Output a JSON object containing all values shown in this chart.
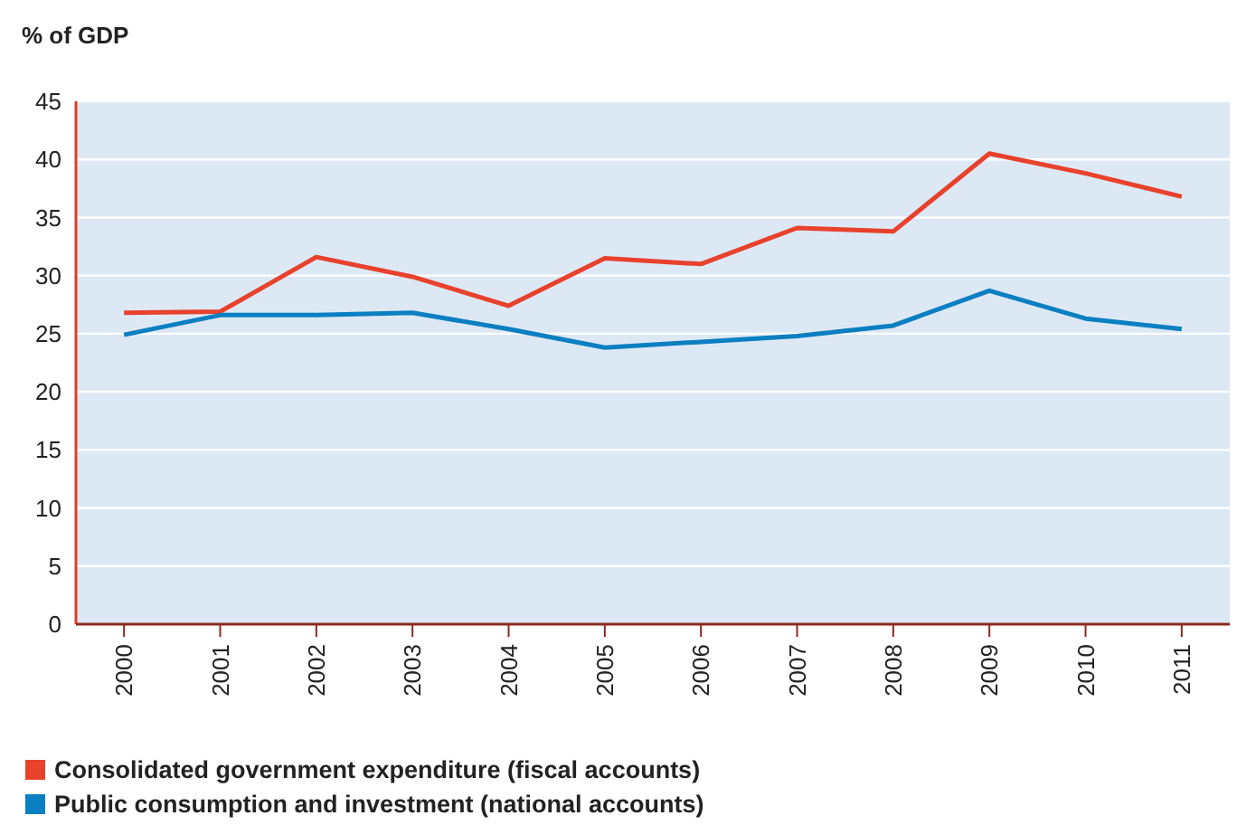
{
  "chart_data": {
    "type": "line",
    "ylabel": "% of GDP",
    "categories": [
      "2000",
      "2001",
      "2002",
      "2003",
      "2004",
      "2005",
      "2006",
      "2007",
      "2008",
      "2009",
      "2010",
      "2011"
    ],
    "series": [
      {
        "name": "Consolidated government expenditure (fiscal accounts)",
        "color": "#e8412c",
        "values": [
          26.8,
          26.9,
          31.6,
          29.9,
          27.4,
          31.5,
          31.0,
          34.1,
          33.8,
          40.5,
          38.8,
          36.8
        ]
      },
      {
        "name": "Public consumption and investment (national accounts)",
        "color": "#0a7fc1",
        "values": [
          24.9,
          26.6,
          26.6,
          26.8,
          25.4,
          23.8,
          24.3,
          24.8,
          25.7,
          28.7,
          26.3,
          25.4
        ]
      }
    ],
    "ylim": [
      0,
      45
    ],
    "yticks": [
      0,
      5,
      10,
      15,
      20,
      25,
      30,
      35,
      40,
      45
    ],
    "grid": "y",
    "legend": "bottom",
    "marker": "none",
    "line_style": "solid"
  }
}
